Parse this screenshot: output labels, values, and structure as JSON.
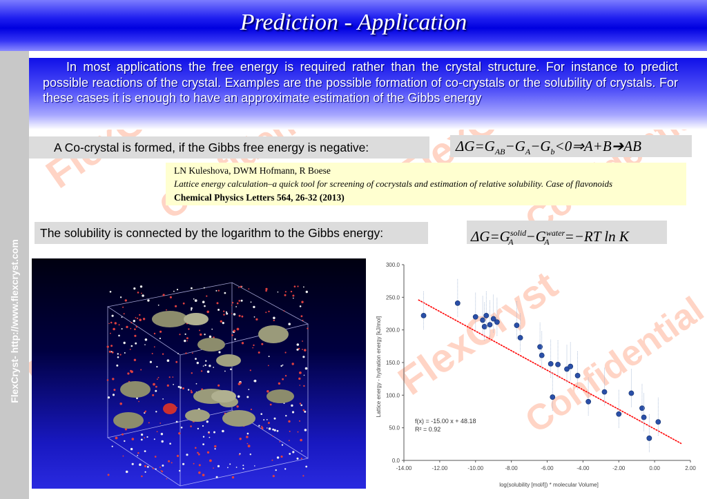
{
  "title": "Prediction - Application",
  "sidebar_text": "FlexCryst- http://www.flexcryst.com",
  "intro": "In most applications the free energy is required rather than the crystal structure. For instance to predict possible reactions of the crystal. Examples are the possible formation of co-crystals or the solubility of crystals. For these cases it is enough to have an approximate estimation of the Gibbs energy",
  "cocrystal": {
    "statement": "A Co-crystal is formed, if the Gibbs free energy is negative:"
  },
  "reference": {
    "authors": "LN Kuleshova, DWM Hofmann, R Boese",
    "title": "Lattice energy calculation–a quick tool for screening of cocrystals and estimation of relative solubility. Case of flavonoids",
    "journal": "Chemical Physics Letters 564, 26-32 (2013)"
  },
  "solubility": {
    "statement": "The solubility is connected by the logarithm to the Gibbs energy:"
  },
  "watermark": {
    "line1": "FlexCryst",
    "line2": "Confidential"
  },
  "chart_data": {
    "type": "scatter",
    "xlabel": "log(solubility [mol/l]) * molecular Volume]",
    "ylabel": "Lattice energy - hydration energy [kJ/mol]",
    "xlim": [
      -14,
      2
    ],
    "ylim": [
      0,
      300
    ],
    "x_ticks": [
      "-14.00",
      "-12.00",
      "-10.00",
      "-8.00",
      "-6.00",
      "-4.00",
      "-2.00",
      "0.00",
      "2.00"
    ],
    "y_ticks": [
      "0.0",
      "50.0",
      "100.0",
      "150.0",
      "200.0",
      "250.0",
      "300.0"
    ],
    "annotation": "f(x) = -15.00 x + 48.18\nR² = 0.92",
    "fit": {
      "slope": -15.0,
      "intercept": 48.18,
      "color": "#ff0000"
    },
    "points": [
      {
        "x": -12.9,
        "y": 222
      },
      {
        "x": -11.0,
        "y": 241
      },
      {
        "x": -10.0,
        "y": 220
      },
      {
        "x": -9.6,
        "y": 215
      },
      {
        "x": -9.5,
        "y": 205
      },
      {
        "x": -9.4,
        "y": 222
      },
      {
        "x": -9.2,
        "y": 208
      },
      {
        "x": -9.0,
        "y": 217
      },
      {
        "x": -8.8,
        "y": 212
      },
      {
        "x": -7.7,
        "y": 207
      },
      {
        "x": -7.5,
        "y": 188
      },
      {
        "x": -6.4,
        "y": 174
      },
      {
        "x": -6.3,
        "y": 161
      },
      {
        "x": -5.8,
        "y": 148
      },
      {
        "x": -5.7,
        "y": 97
      },
      {
        "x": -5.4,
        "y": 147
      },
      {
        "x": -4.9,
        "y": 140
      },
      {
        "x": -4.7,
        "y": 144
      },
      {
        "x": -4.3,
        "y": 130
      },
      {
        "x": -3.7,
        "y": 90
      },
      {
        "x": -2.8,
        "y": 105
      },
      {
        "x": -2.0,
        "y": 71
      },
      {
        "x": -1.3,
        "y": 103
      },
      {
        "x": -0.7,
        "y": 80
      },
      {
        "x": -0.6,
        "y": 66
      },
      {
        "x": -0.3,
        "y": 34
      },
      {
        "x": 0.2,
        "y": 59
      }
    ],
    "point_color": "#2a4fa8"
  }
}
